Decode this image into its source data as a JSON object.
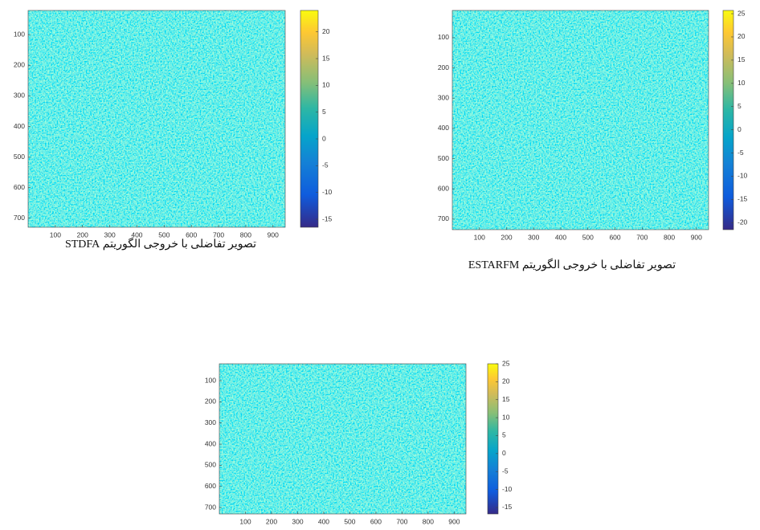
{
  "chart_data": [
    {
      "type": "image",
      "caption": "تصویر تفاضلی با خروجی الگوریتم STDFA",
      "colormap": "parula",
      "xlim": [
        0,
        945
      ],
      "ylim": [
        20,
        730
      ],
      "y_reversed": true,
      "xticks": [
        100,
        200,
        300,
        400,
        500,
        600,
        700,
        800,
        900
      ],
      "yticks": [
        100,
        200,
        300,
        400,
        500,
        600,
        700
      ],
      "clim": [
        -16.5,
        24
      ],
      "cticks": [
        -15,
        -10,
        -5,
        0,
        5,
        10,
        15,
        20
      ]
    },
    {
      "type": "image",
      "caption": "تصویر تفاضلی با خروجی الگوریتم ESTARFM",
      "colormap": "parula",
      "xlim": [
        0,
        945
      ],
      "ylim": [
        10,
        735
      ],
      "y_reversed": true,
      "xticks": [
        100,
        200,
        300,
        400,
        500,
        600,
        700,
        800,
        900
      ],
      "yticks": [
        100,
        200,
        300,
        400,
        500,
        600,
        700
      ],
      "clim": [
        -21.5,
        25.7
      ],
      "cticks": [
        -20,
        -15,
        -10,
        -5,
        0,
        5,
        10,
        15,
        20,
        25
      ]
    },
    {
      "type": "image",
      "colormap": "parula",
      "xlim": [
        0,
        945
      ],
      "ylim": [
        20,
        730
      ],
      "y_reversed": true,
      "xticks": [
        100,
        200,
        300,
        400,
        500,
        600,
        700,
        800,
        900
      ],
      "yticks": [
        100,
        200,
        300,
        400,
        500,
        600,
        700
      ],
      "clim": [
        -16.8,
        25
      ],
      "cticks": [
        -15,
        -10,
        -5,
        0,
        5,
        10,
        15,
        20,
        25
      ]
    }
  ]
}
